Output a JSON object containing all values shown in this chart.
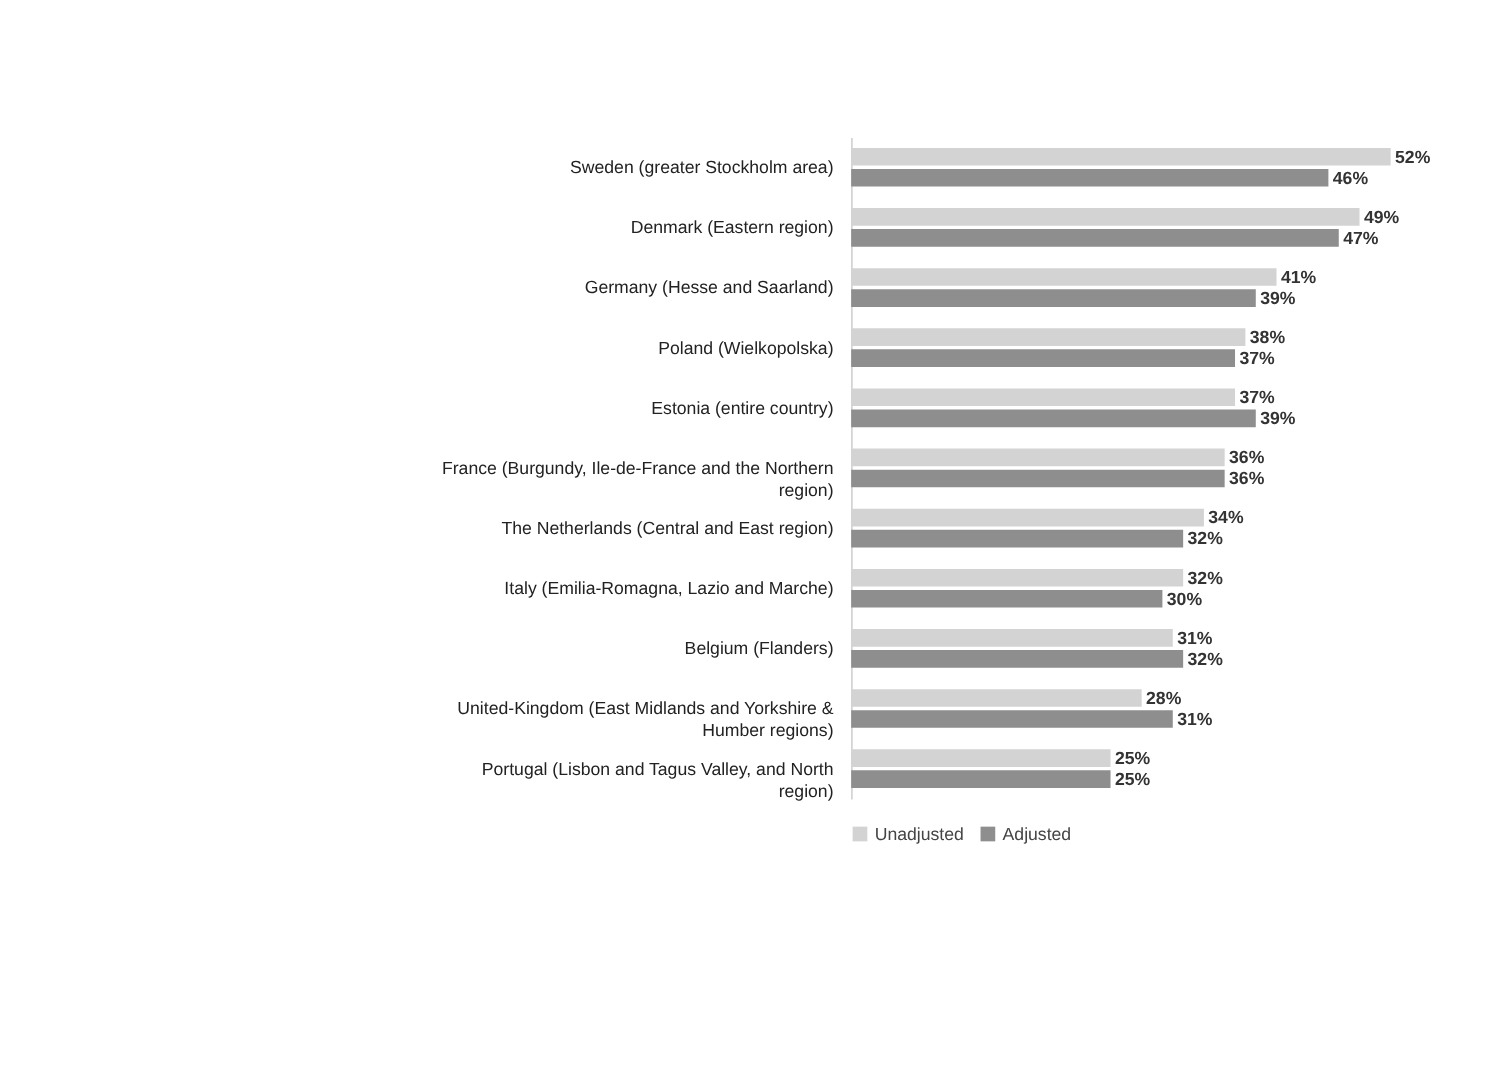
{
  "chart_data": {
    "type": "bar",
    "orientation": "horizontal",
    "categories": [
      "Sweden (greater Stockholm area)",
      "Denmark (Eastern region)",
      "Germany (Hesse and Saarland)",
      "Poland (Wielkopolska)",
      "Estonia (entire country)",
      "France (Burgundy, Ile-de-France and the Northern region)",
      "The Netherlands (Central and East region)",
      "Italy (Emilia-Romagna, Lazio and Marche)",
      "Belgium (Flanders)",
      "United-Kingdom (East Midlands and Yorkshire & Humber regions)",
      "Portugal (Lisbon and Tagus Valley, and North region)"
    ],
    "series": [
      {
        "name": "Unadjusted",
        "color": "#d3d3d3",
        "values": [
          52,
          49,
          41,
          38,
          37,
          36,
          34,
          32,
          31,
          28,
          25
        ],
        "value_labels": [
          "52%",
          "49%",
          "41%",
          "38%",
          "37%",
          "36%",
          "34%",
          "32%",
          "31%",
          "28%",
          "25%"
        ]
      },
      {
        "name": "Adjusted",
        "color": "#8e8e8e",
        "values": [
          46,
          47,
          39,
          37,
          39,
          36,
          32,
          30,
          32,
          31,
          25
        ],
        "value_labels": [
          "46%",
          "47%",
          "39%",
          "37%",
          "39%",
          "36%",
          "32%",
          "30%",
          "32%",
          "31%",
          "25%"
        ]
      }
    ],
    "legend": "bottom"
  }
}
